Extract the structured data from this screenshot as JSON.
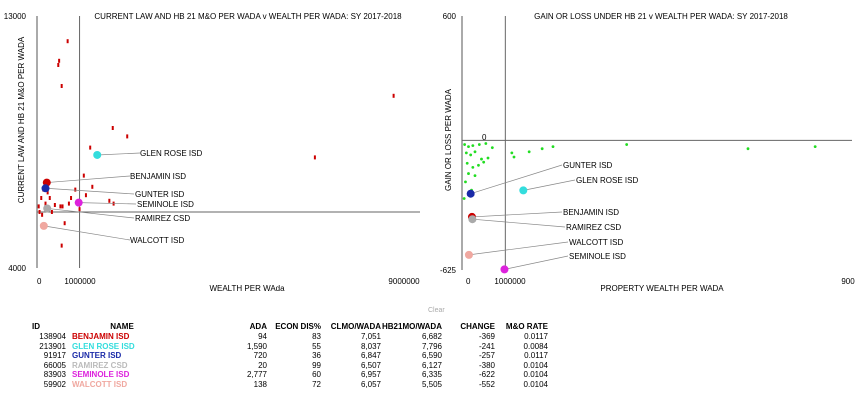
{
  "chart_data": [
    {
      "type": "scatter",
      "title": "CURRENT LAW AND HB 21 M&O PER WADA v WEALTH PER WADA: SY 2017-2018",
      "xlabel": "WEALTH PER WAda",
      "ylabel": "CURRENT LAW AND HB 21 M&O PER WADA",
      "xlim": [
        0,
        9000000
      ],
      "ylim": [
        4000,
        13000
      ],
      "x_ticks": [
        "0",
        "1000000",
        "9000000"
      ],
      "y_ticks": [
        "13000",
        "4000"
      ],
      "ref_x": 1000000,
      "ref_y": 6000,
      "grid": false,
      "color": "#cc0000",
      "background_points": [
        {
          "x": 720000,
          "y": 12100
        },
        {
          "x": 520000,
          "y": 11400
        },
        {
          "x": 500000,
          "y": 11250
        },
        {
          "x": 8380000,
          "y": 10150
        },
        {
          "x": 580000,
          "y": 10500
        },
        {
          "x": 2120000,
          "y": 8700
        },
        {
          "x": 1780000,
          "y": 9000
        },
        {
          "x": 1250000,
          "y": 8300
        },
        {
          "x": 6530000,
          "y": 7950
        },
        {
          "x": 1100000,
          "y": 7300
        },
        {
          "x": 1300000,
          "y": 6900
        },
        {
          "x": 1150000,
          "y": 6600
        },
        {
          "x": 900000,
          "y": 6800
        },
        {
          "x": 800000,
          "y": 6500
        },
        {
          "x": 750000,
          "y": 6300
        },
        {
          "x": 600000,
          "y": 6200
        },
        {
          "x": 1700000,
          "y": 6400
        },
        {
          "x": 1800000,
          "y": 6300
        },
        {
          "x": 300000,
          "y": 6500
        },
        {
          "x": 420000,
          "y": 6250
        },
        {
          "x": 1000000,
          "y": 6100
        },
        {
          "x": 250000,
          "y": 6700
        },
        {
          "x": 350000,
          "y": 6000
        },
        {
          "x": 200000,
          "y": 6300
        },
        {
          "x": 550000,
          "y": 6200
        },
        {
          "x": 650000,
          "y": 5600
        },
        {
          "x": 580000,
          "y": 4800
        },
        {
          "x": 100000,
          "y": 6500
        },
        {
          "x": 150000,
          "y": 6800
        },
        {
          "x": 60000,
          "y": 6000
        },
        {
          "x": 40000,
          "y": 6200
        },
        {
          "x": 120000,
          "y": 5900
        }
      ],
      "highlight_points": [
        {
          "name": "GLEN ROSE ISD",
          "x": 1415000,
          "y": 8037,
          "color": "#33dddd"
        },
        {
          "name": "BENJAMIN ISD",
          "x": 230000,
          "y": 7051,
          "color": "#cc0000"
        },
        {
          "name": "GUNTER ISD",
          "x": 200000,
          "y": 6847,
          "color": "#1a2aa8"
        },
        {
          "name": "SEMINOLE ISD",
          "x": 980000,
          "y": 6335,
          "color": "#dd22dd"
        },
        {
          "name": "RAMIREZ CSD",
          "x": 240000,
          "y": 6127,
          "color": "#aaaaaa"
        },
        {
          "name": "WALCOTT ISD",
          "x": 160000,
          "y": 5505,
          "color": "#f0a8a0"
        }
      ]
    },
    {
      "type": "scatter",
      "title": "GAIN OR LOSS UNDER HB 21 v WEALTH PER WADA: SY 2017-2018",
      "xlabel": "PROPERTY WEALTH PER WADA",
      "ylabel": "GAIN OR LOSS PER WADA",
      "xlim": [
        0,
        9000000
      ],
      "ylim": [
        -625,
        600
      ],
      "x_ticks": [
        "0",
        "1000000",
        "900"
      ],
      "y_ticks": [
        "600",
        "0",
        "-625"
      ],
      "ref_x": 1000000,
      "ref_y": 0,
      "grid": false,
      "color": "#22dd22",
      "background_points": [
        {
          "x": 60000,
          "y": -20
        },
        {
          "x": 150000,
          "y": -30
        },
        {
          "x": 250000,
          "y": -25
        },
        {
          "x": 400000,
          "y": -20
        },
        {
          "x": 550000,
          "y": -15
        },
        {
          "x": 700000,
          "y": -35
        },
        {
          "x": 100000,
          "y": -60
        },
        {
          "x": 200000,
          "y": -70
        },
        {
          "x": 300000,
          "y": -55
        },
        {
          "x": 450000,
          "y": -90
        },
        {
          "x": 600000,
          "y": -85
        },
        {
          "x": 120000,
          "y": -110
        },
        {
          "x": 250000,
          "y": -130
        },
        {
          "x": 380000,
          "y": -120
        },
        {
          "x": 500000,
          "y": -105
        },
        {
          "x": 150000,
          "y": -160
        },
        {
          "x": 300000,
          "y": -170
        },
        {
          "x": 80000,
          "y": -200
        },
        {
          "x": 220000,
          "y": -240
        },
        {
          "x": 50000,
          "y": -280
        },
        {
          "x": 1150000,
          "y": -60
        },
        {
          "x": 1200000,
          "y": -80
        },
        {
          "x": 1550000,
          "y": -55
        },
        {
          "x": 1850000,
          "y": -40
        },
        {
          "x": 2100000,
          "y": -30
        },
        {
          "x": 3800000,
          "y": -20
        },
        {
          "x": 6600000,
          "y": -40
        },
        {
          "x": 8150000,
          "y": -30
        }
      ],
      "highlight_points": [
        {
          "name": "GUNTER ISD",
          "x": 200000,
          "y": -257,
          "color": "#1a2aa8"
        },
        {
          "name": "GLEN ROSE ISD",
          "x": 1415000,
          "y": -241,
          "color": "#33dddd"
        },
        {
          "name": "BENJAMIN ISD",
          "x": 230000,
          "y": -369,
          "color": "#cc0000"
        },
        {
          "name": "RAMIREZ CSD",
          "x": 240000,
          "y": -380,
          "color": "#aaaaaa"
        },
        {
          "name": "WALCOTT ISD",
          "x": 160000,
          "y": -552,
          "color": "#f0a8a0"
        },
        {
          "name": "SEMINOLE ISD",
          "x": 980000,
          "y": -622,
          "color": "#dd22dd"
        }
      ]
    }
  ],
  "clear_label": "Clear",
  "table": {
    "headers": [
      "ID",
      "NAME",
      "ADA",
      "ECON DIS%",
      "CLMO/WADA",
      "HB21MO/WADA",
      "CHANGE",
      "M&O RATE"
    ],
    "rows": [
      {
        "id": "138904",
        "name": "BENJAMIN ISD",
        "color": "#cc0000",
        "ada": "94",
        "econ": "83",
        "clmo": "7,051",
        "hb21": "6,682",
        "change": "-369",
        "rate": "0.0117"
      },
      {
        "id": "213901",
        "name": "GLEN ROSE ISD",
        "color": "#33dddd",
        "ada": "1,590",
        "econ": "55",
        "clmo": "8,037",
        "hb21": "7,796",
        "change": "-241",
        "rate": "0.0084"
      },
      {
        "id": "91917",
        "name": "GUNTER ISD",
        "color": "#1a2aa8",
        "ada": "720",
        "econ": "36",
        "clmo": "6,847",
        "hb21": "6,590",
        "change": "-257",
        "rate": "0.0117"
      },
      {
        "id": "66005",
        "name": "RAMIREZ CSD",
        "color": "#bbbbbb",
        "ada": "20",
        "econ": "99",
        "clmo": "6,507",
        "hb21": "6,127",
        "change": "-380",
        "rate": "0.0104"
      },
      {
        "id": "83903",
        "name": "SEMINOLE ISD",
        "color": "#dd22dd",
        "ada": "2,777",
        "econ": "60",
        "clmo": "6,957",
        "hb21": "6,335",
        "change": "-622",
        "rate": "0.0104"
      },
      {
        "id": "59902",
        "name": "WALCOTT ISD",
        "color": "#f0a8a0",
        "ada": "138",
        "econ": "72",
        "clmo": "6,057",
        "hb21": "5,505",
        "change": "-552",
        "rate": "0.0104"
      }
    ]
  }
}
